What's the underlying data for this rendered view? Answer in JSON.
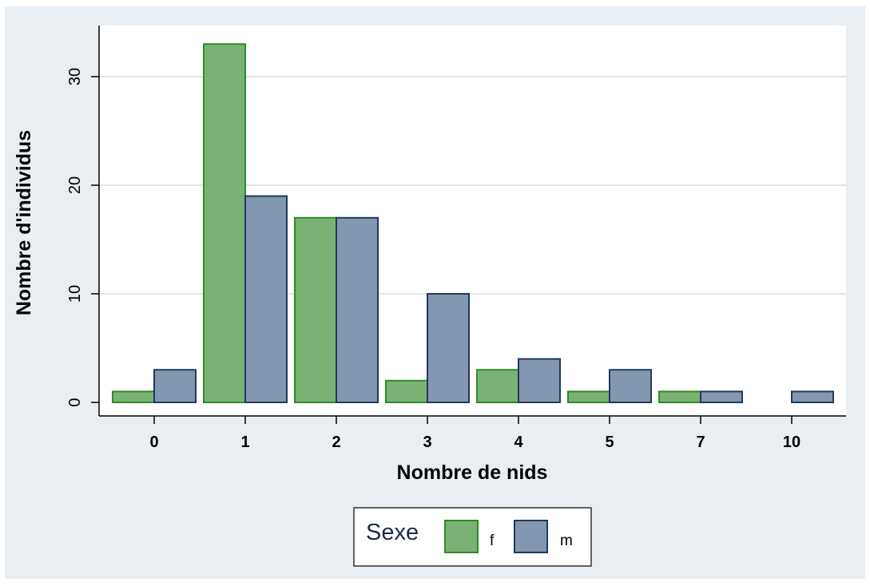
{
  "chart_data": {
    "type": "bar",
    "xlabel": "Nombre de nids",
    "ylabel": "Nombre d'individus",
    "categories": [
      "0",
      "1",
      "2",
      "3",
      "4",
      "5",
      "7",
      "10"
    ],
    "series": [
      {
        "name": "f",
        "values": [
          1,
          33,
          17,
          2,
          3,
          1,
          1,
          0
        ],
        "color": "#7ab274",
        "stroke": "#2f8a2a"
      },
      {
        "name": "m",
        "values": [
          3,
          19,
          17,
          10,
          4,
          3,
          1,
          1
        ],
        "color": "#8497b0",
        "stroke": "#1f3a5c"
      }
    ],
    "ylim": [
      0,
      35
    ],
    "yticks": [
      0,
      10,
      20,
      30
    ],
    "grid": true,
    "legend": {
      "title": "Sexe",
      "position": "bottom-center"
    },
    "colors": {
      "background_outer": "#e8eef2",
      "plot_background": "#ffffff",
      "gridline": "#dce6ec"
    }
  }
}
